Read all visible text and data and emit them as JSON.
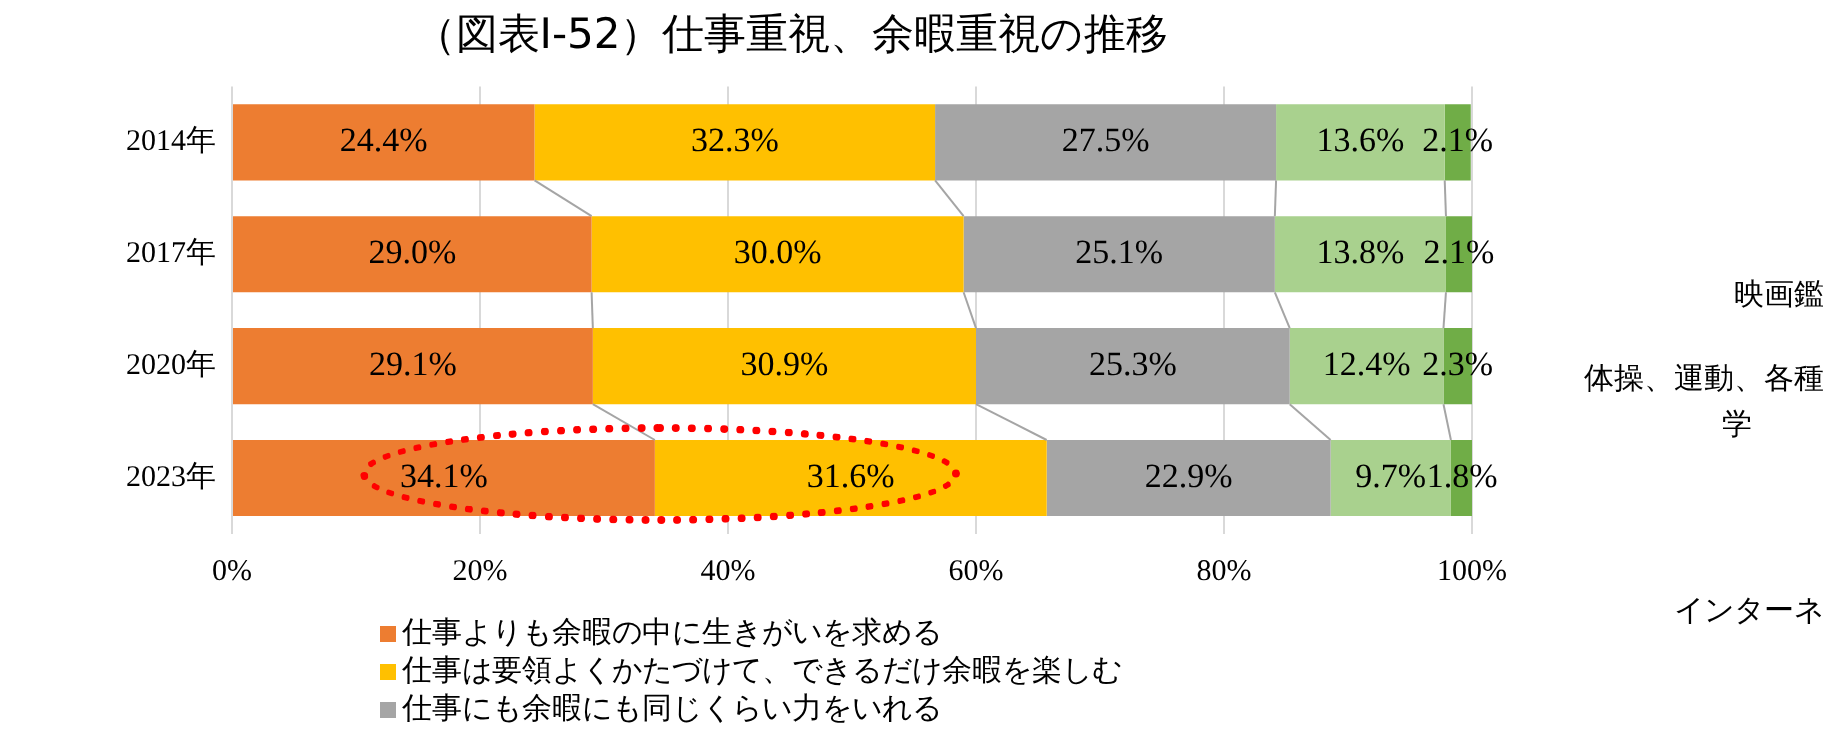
{
  "chart_data": {
    "type": "bar",
    "orientation": "horizontal",
    "stacked": true,
    "title": "（図表Ⅰ-52）仕事重視、余暇重視の推移",
    "categories": [
      "2014年",
      "2017年",
      "2020年",
      "2023年"
    ],
    "series": [
      {
        "name": "仕事よりも余暇の中に生きがいを求める",
        "color": "#ed7d31",
        "values": [
          24.4,
          29.0,
          29.1,
          34.1
        ],
        "value_labels": [
          "24.4%",
          "29.0%",
          "29.1%",
          "34.1%"
        ]
      },
      {
        "name": "仕事は要領よくかたづけて、できるだけ余暇を楽しむ",
        "color": "#ffc000",
        "values": [
          32.3,
          30.0,
          30.9,
          31.6
        ],
        "value_labels": [
          "32.3%",
          "30.0%",
          "30.9%",
          "31.6%"
        ]
      },
      {
        "name": "仕事にも余暇にも同じくらい力をいれる",
        "color": "#a5a5a5",
        "values": [
          27.5,
          25.1,
          25.3,
          22.9
        ],
        "value_labels": [
          "27.5%",
          "25.1%",
          "25.3%",
          "22.9%"
        ]
      },
      {
        "color": "#a9d18e",
        "values": [
          13.6,
          13.8,
          12.4,
          9.7
        ],
        "value_labels": [
          "13.6%",
          "13.8%",
          "12.4%",
          "9.7%"
        ]
      },
      {
        "color": "#70ad47",
        "values": [
          2.1,
          2.1,
          2.3,
          1.8
        ],
        "value_labels": [
          "2.1%",
          "2.1%",
          "2.3%",
          "1.8%"
        ]
      }
    ],
    "xlim": [
      0,
      100
    ],
    "xticks": [
      {
        "value": 0,
        "label": "0%"
      },
      {
        "value": 20,
        "label": "20%"
      },
      {
        "value": 40,
        "label": "40%"
      },
      {
        "value": 60,
        "label": "60%"
      },
      {
        "value": 80,
        "label": "80%"
      },
      {
        "value": 100,
        "label": "100%"
      }
    ],
    "grid": "x",
    "legend": "bottom",
    "annotations": [
      "映画鑑",
      "体操、運動、各種",
      "学",
      "インターネ"
    ]
  }
}
